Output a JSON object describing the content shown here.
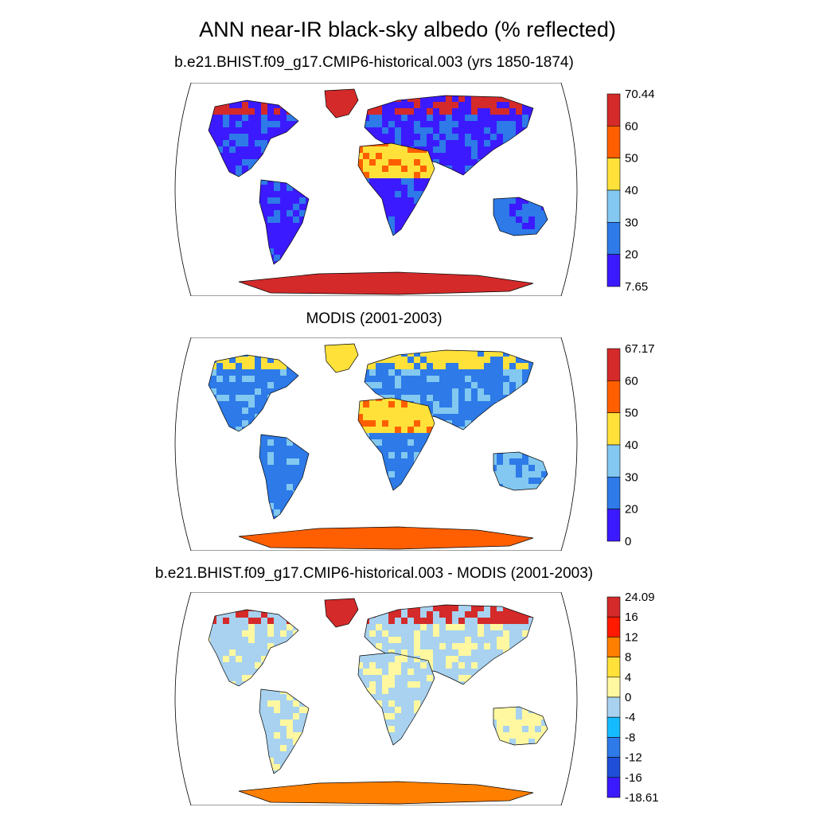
{
  "title": "ANN near-IR black-sky albedo (% reflected)",
  "panels": [
    {
      "title": "b.e21.BHIST.f09_g17.CMIP6-historical.003 (yrs 1850-1874)",
      "colorbar": {
        "labels": [
          "70.44",
          "60",
          "50",
          "40",
          "30",
          "20",
          "7.65"
        ],
        "colors": [
          "#d42a2a",
          "#ff5f00",
          "#ffe13a",
          "#82c8f0",
          "#2d7ae8",
          "#3c1aff"
        ]
      },
      "land_palette": {
        "ocean": "#ffffff",
        "land": "#3c1aff",
        "land2": "#2d7ae8",
        "high_lat": "#d42a2a",
        "desert": "#ffe13a",
        "desert_hot": "#ff5f00",
        "antarctica": "#d42a2a"
      }
    },
    {
      "title": "MODIS (2001-2003)",
      "colorbar": {
        "labels": [
          "67.17",
          "60",
          "50",
          "40",
          "30",
          "20",
          "0"
        ],
        "colors": [
          "#d42a2a",
          "#ff5f00",
          "#ffe13a",
          "#82c8f0",
          "#2d7ae8",
          "#3c1aff"
        ]
      },
      "land_palette": {
        "ocean": "#ffffff",
        "land": "#2d7ae8",
        "land2": "#82c8f0",
        "high_lat": "#ffe13a",
        "desert": "#ffe13a",
        "desert_hot": "#ff5f00",
        "antarctica": "#ff5f00"
      }
    },
    {
      "title": "b.e21.BHIST.f09_g17.CMIP6-historical.003 - MODIS (2001-2003)",
      "colorbar": {
        "labels": [
          "24.09",
          "16",
          "12",
          "8",
          "4",
          "0",
          "-4",
          "-8",
          "-12",
          "-16",
          "-18.61"
        ],
        "colors": [
          "#d42a2a",
          "#ff1a00",
          "#ff7f00",
          "#ffe13a",
          "#fff8a0",
          "#a8d2f0",
          "#14bcff",
          "#2d7ae8",
          "#1f4fd8",
          "#3c1aff"
        ]
      },
      "land_palette": {
        "ocean": "#ffffff",
        "land": "#a8d2f0",
        "land2": "#fff8a0",
        "high_lat": "#d42a2a",
        "desert": "#a8d2f0",
        "desert_hot": "#fff8a0",
        "antarctica": "#ff7f00"
      }
    }
  ]
}
